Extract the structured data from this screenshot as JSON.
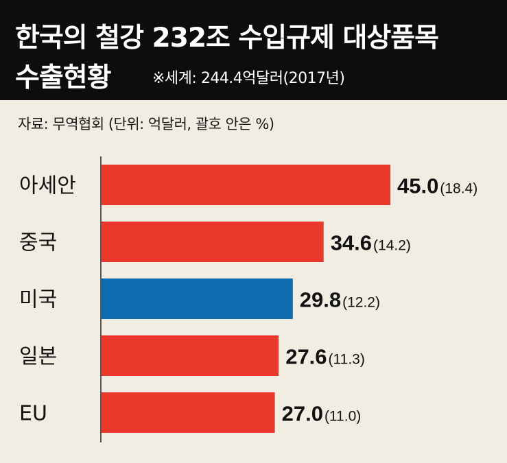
{
  "header": {
    "title_line1": "한국의 철강 232조 수입규제 대상품목",
    "title_line2": "수출현황",
    "note": "※세계: 244.4억달러(2017년)"
  },
  "source_note": "자료: 무역협회  (단위: 억달러, 괄호 안은 %)",
  "colors": {
    "default_bar": "#e8392c",
    "highlight_bar": "#0d6bb0",
    "header_bg": "#0d0d0d",
    "background": "#f1ede2"
  },
  "chart_data": {
    "type": "bar",
    "orientation": "horizontal",
    "categories": [
      "아세안",
      "중국",
      "미국",
      "일본",
      "EU"
    ],
    "values": [
      45.0,
      34.6,
      29.8,
      27.6,
      27.0
    ],
    "value_labels": [
      "45.0",
      "34.6",
      "29.8",
      "27.6",
      "27.0"
    ],
    "shares": [
      "(18.4)",
      "(14.2)",
      "(12.2)",
      "(11.3)",
      "(11.0)"
    ],
    "highlight_index": 2,
    "xlim": [
      0,
      50
    ]
  }
}
